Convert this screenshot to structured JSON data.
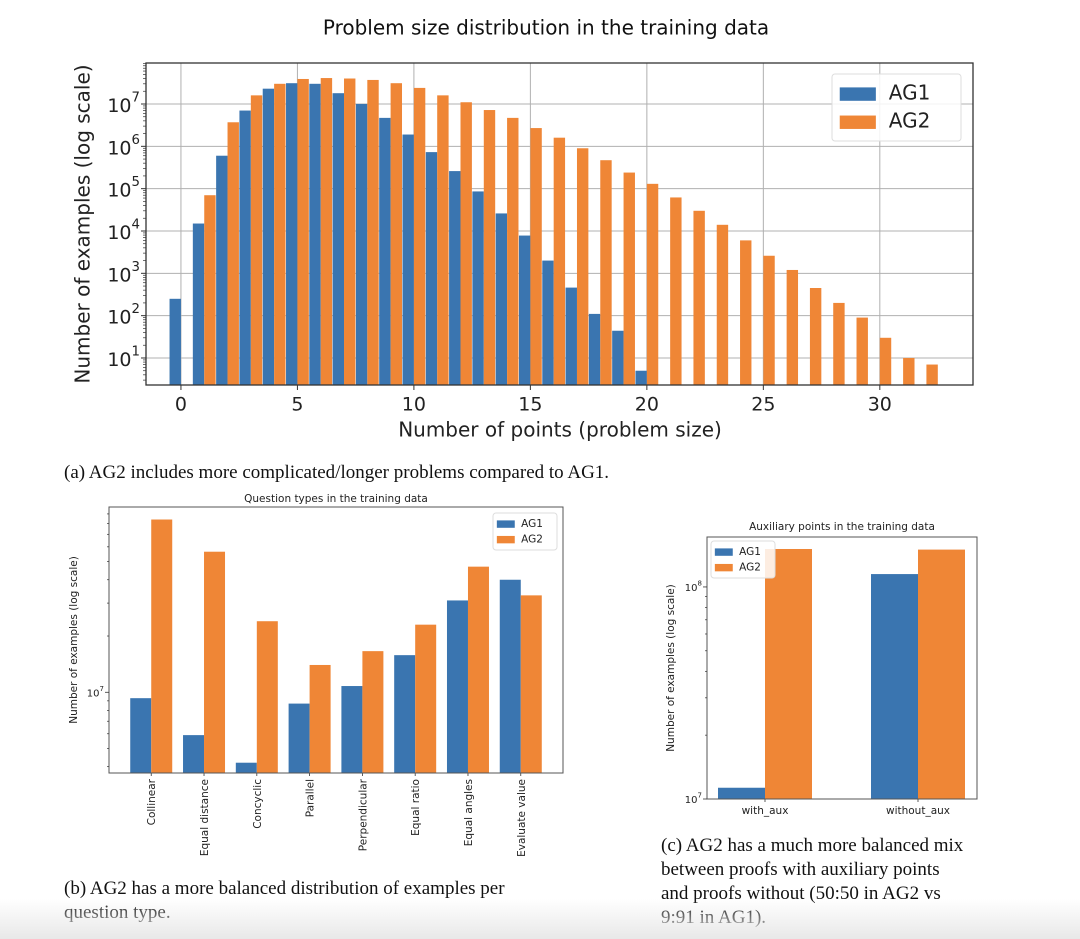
{
  "colors": {
    "ag1": "#3a75b0",
    "ag2": "#ef8636"
  },
  "chart_data": [
    {
      "id": "a",
      "type": "bar",
      "title": "Problem size distribution in the training data",
      "xlabel": "Number of points (problem size)",
      "ylabel": "Number of examples (log scale)",
      "yscale": "log",
      "ylim": [
        2.3,
        93000000
      ],
      "xlim": [
        -1.5,
        34
      ],
      "xticks": [
        0,
        5,
        10,
        15,
        20,
        25,
        30
      ],
      "yticks": [
        {
          "value": 10,
          "exp": "1"
        },
        {
          "value": 100,
          "exp": "2"
        },
        {
          "value": 1000,
          "exp": "3"
        },
        {
          "value": 10000,
          "exp": "4"
        },
        {
          "value": 100000,
          "exp": "5"
        },
        {
          "value": 1000000,
          "exp": "6"
        },
        {
          "value": 10000000,
          "exp": "7"
        }
      ],
      "ytick_base": "10",
      "grid": true,
      "legend_position": "top-right",
      "x": [
        0,
        1,
        2,
        3,
        4,
        5,
        6,
        7,
        8,
        9,
        10,
        11,
        12,
        13,
        14,
        15,
        16,
        17,
        18,
        19,
        20,
        21,
        22,
        23,
        24,
        25,
        26,
        27,
        28,
        29,
        30,
        31,
        32
      ],
      "series": [
        {
          "name": "AG1",
          "values": [
            250,
            15000,
            600000,
            7000000,
            23000000,
            31000000,
            30000000,
            18000000,
            10000000,
            4700000,
            1900000,
            730000,
            260000,
            86000,
            26000,
            7800,
            2000,
            460,
            110,
            44,
            5,
            null,
            null,
            null,
            null,
            null,
            null,
            null,
            null,
            null,
            null,
            null,
            null
          ]
        },
        {
          "name": "AG2",
          "values": [
            null,
            70000,
            3700000,
            16000000,
            30000000,
            39000000,
            41000000,
            40000000,
            37000000,
            31000000,
            24000000,
            16000000,
            11000000,
            7200000,
            4700000,
            2700000,
            1600000,
            900000,
            470000,
            240000,
            130000,
            62000,
            30000,
            14000,
            6000,
            2600,
            1200,
            450,
            200,
            90,
            30,
            10,
            7
          ]
        }
      ]
    },
    {
      "id": "b",
      "type": "bar",
      "title": "Question types in the training data",
      "xlabel": "",
      "ylabel": "Number of examples (log scale)",
      "yscale": "log",
      "ylim": [
        3700000,
        98000000
      ],
      "yticks": [
        {
          "value": 10000000,
          "exp": "7"
        }
      ],
      "ytick_base": "10",
      "grid": false,
      "legend_position": "top-right",
      "categories": [
        "Collinear",
        "Equal distance",
        "Concyclic",
        "Parallel",
        "Perpendicular",
        "Equal ratio",
        "Equal angles",
        "Evaluate value"
      ],
      "series": [
        {
          "name": "AG1",
          "values": [
            9300000,
            5900000,
            4200000,
            8700000,
            10800000,
            15800000,
            31000000,
            40000000
          ]
        },
        {
          "name": "AG2",
          "values": [
            84000000,
            56500000,
            24000000,
            14000000,
            16600000,
            23000000,
            47000000,
            33000000
          ]
        }
      ]
    },
    {
      "id": "c",
      "type": "bar",
      "title": "Auxiliary points in the training data",
      "xlabel": "",
      "ylabel": "Number of examples (log scale)",
      "yscale": "log",
      "ylim": [
        10000000,
        172000000
      ],
      "yticks": [
        {
          "value": 10000000,
          "exp": "7"
        },
        {
          "value": 100000000,
          "exp": "8"
        }
      ],
      "ytick_base": "10",
      "grid": false,
      "legend_position": "top-left",
      "categories": [
        "with_aux",
        "without_aux"
      ],
      "series": [
        {
          "name": "AG1",
          "values": [
            11300000,
            115000000
          ]
        },
        {
          "name": "AG2",
          "values": [
            151000000,
            150000000
          ]
        }
      ]
    }
  ],
  "captions": {
    "a": "(a) AG2 includes more complicated/longer problems compared to AG1.",
    "b_line1": "(b) AG2 has a more balanced distribution of examples per",
    "b_line2": "question type.",
    "c_line1": "(c) AG2 has a much more balanced mix",
    "c_line2": "between proofs with auxiliary points",
    "c_line3": "and proofs without (50:50 in AG2 vs",
    "c_line4": "9:91 in AG1)."
  }
}
